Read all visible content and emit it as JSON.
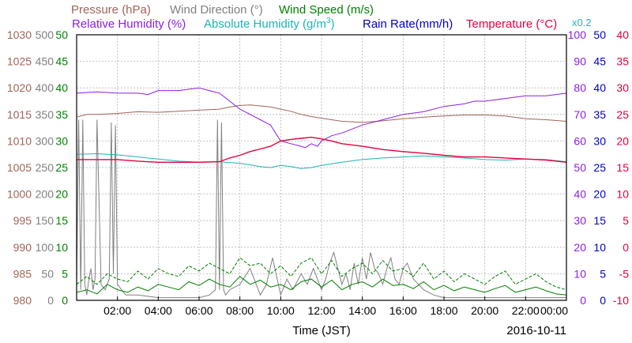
{
  "chart_data": {
    "type": "line",
    "date_label": "2016-10-11",
    "xlabel": "Time (JST)",
    "x_ticks": [
      "02:00",
      "04:00",
      "06:00",
      "08:00",
      "10:00",
      "12:00",
      "14:00",
      "16:00",
      "18:00",
      "20:00",
      "22:00",
      "00:00"
    ],
    "xlim_hours": [
      0,
      24
    ],
    "grid": true,
    "legend": [
      {
        "label": "Pressure (hPa)",
        "color": "#a0645a"
      },
      {
        "label": "Wind Direction (°)",
        "color": "#808080"
      },
      {
        "label": "Wind Speed (m/s)",
        "color": "#008000"
      },
      {
        "label": "Relative Humidity (%)",
        "color": "#8c1ee6"
      },
      {
        "label": "Absolute Humidity (g/m",
        "sup": "3",
        "close": ")",
        "color": "#1eb4b4"
      },
      {
        "label": "Rain Rate(mm/h)",
        "color": "#0000c8"
      },
      {
        "label": "Temperature (°C)",
        "color": "#e6003c"
      },
      {
        "label": "x0.2",
        "color": "#1eb4b4"
      }
    ],
    "axes": {
      "pressure": {
        "color": "#a0645a",
        "ylim": [
          980,
          1030
        ],
        "ticks": [
          "1030",
          "1025",
          "1020",
          "1015",
          "1010",
          "1005",
          "1000",
          "995",
          "990",
          "985",
          "980"
        ]
      },
      "wind_direction": {
        "color": "#808080",
        "ylim": [
          0,
          500
        ],
        "ticks": [
          "500",
          "450",
          "400",
          "350",
          "300",
          "250",
          "200",
          "150",
          "100",
          "50",
          "0"
        ]
      },
      "wind_speed": {
        "color": "#008000",
        "ylim": [
          0,
          50
        ],
        "ticks": [
          "50",
          "45",
          "40",
          "35",
          "30",
          "25",
          "20",
          "15",
          "10",
          "5",
          "0"
        ]
      },
      "relative_humidity": {
        "color": "#8c1ee6",
        "ylim": [
          0,
          100
        ],
        "ticks": [
          "100",
          "90",
          "80",
          "70",
          "60",
          "50",
          "40",
          "30",
          "20",
          "10",
          "0"
        ]
      },
      "rain_rate": {
        "color": "#0000c8",
        "ylim": [
          0,
          50
        ],
        "ticks": [
          "50",
          "45",
          "40",
          "35",
          "30",
          "25",
          "20",
          "15",
          "10",
          "5",
          "0"
        ]
      },
      "temperature": {
        "color": "#e6003c",
        "ylim": [
          -10,
          40
        ],
        "ticks": [
          "40",
          "35",
          "30",
          "25",
          "20",
          "15",
          "10",
          "5",
          "0",
          "-5",
          "-10"
        ]
      }
    },
    "series": [
      {
        "name": "Pressure (hPa)",
        "axis": "pressure",
        "color": "#a0645a",
        "x": [
          0,
          0.5,
          1,
          2,
          3,
          4,
          5,
          6,
          7,
          7.5,
          8,
          8.5,
          9,
          9.5,
          10,
          10.5,
          11,
          11.5,
          12,
          13,
          14,
          15,
          16,
          17,
          18,
          19,
          20,
          21,
          22,
          23,
          24
        ],
        "y": [
          1014.5,
          1015,
          1015,
          1015.2,
          1015.5,
          1015.4,
          1015.6,
          1015.8,
          1016,
          1016.4,
          1016.7,
          1016.8,
          1016.6,
          1016.4,
          1016,
          1015.6,
          1015,
          1014.6,
          1014.3,
          1013.7,
          1013.5,
          1013.8,
          1014.2,
          1014.5,
          1014.7,
          1014.9,
          1014.9,
          1014.7,
          1014.2,
          1014,
          1013.7
        ]
      },
      {
        "name": "Wind Direction (°)",
        "axis": "wind_direction",
        "color": "#808080",
        "x": [
          0,
          0.1,
          0.2,
          0.3,
          0.4,
          0.5,
          0.6,
          0.7,
          0.8,
          0.9,
          1,
          1.2,
          1.4,
          1.6,
          1.7,
          1.8,
          1.9,
          2,
          2.2,
          2.4,
          3,
          4,
          5,
          6,
          6.5,
          6.8,
          6.9,
          7,
          7.1,
          7.2,
          7.3,
          7.5,
          8,
          8.5,
          9,
          9.3,
          9.6,
          10,
          10.3,
          10.6,
          11,
          11.3,
          11.6,
          12,
          12.2,
          12.4,
          12.6,
          12.8,
          13,
          13.2,
          13.4,
          13.6,
          13.8,
          14,
          14.2,
          14.4,
          14.6,
          14.8,
          15,
          15.2,
          15.4,
          15.6,
          15.8,
          16,
          16.2,
          16.5,
          17,
          17.5,
          18,
          18.5,
          19,
          19.5,
          20,
          21,
          22,
          23,
          24
        ],
        "y": [
          30,
          340,
          20,
          340,
          30,
          10,
          40,
          60,
          20,
          40,
          340,
          30,
          20,
          40,
          335,
          50,
          330,
          30,
          20,
          10,
          10,
          5,
          5,
          5,
          10,
          20,
          340,
          20,
          335,
          20,
          10,
          20,
          30,
          60,
          10,
          30,
          80,
          10,
          40,
          20,
          50,
          30,
          60,
          20,
          40,
          70,
          90,
          60,
          30,
          50,
          20,
          70,
          30,
          80,
          40,
          90,
          60,
          50,
          30,
          60,
          80,
          40,
          30,
          60,
          70,
          40,
          20,
          10,
          5,
          5,
          5,
          5,
          5,
          5,
          5,
          5,
          5
        ]
      },
      {
        "name": "Wind Speed (m/s)",
        "axis": "wind_speed",
        "color": "#008000",
        "x": [
          0,
          0.5,
          1,
          1.5,
          2,
          2.5,
          3,
          3.5,
          4,
          4.5,
          5,
          5.5,
          6,
          6.5,
          7,
          7.5,
          8,
          8.5,
          9,
          9.5,
          10,
          10.5,
          11,
          11.5,
          12,
          12.5,
          13,
          13.5,
          14,
          14.5,
          15,
          15.5,
          16,
          16.5,
          17,
          17.5,
          18,
          18.5,
          19,
          19.5,
          20,
          20.5,
          21,
          21.5,
          22,
          22.5,
          23,
          23.5,
          24
        ],
        "y": [
          1.5,
          2,
          1.2,
          3,
          2,
          1.5,
          2.5,
          1.8,
          3,
          2.5,
          2,
          3.5,
          2.8,
          4,
          3,
          2.5,
          4.5,
          3,
          3.8,
          2.5,
          3,
          2,
          3.5,
          4,
          2.5,
          3.8,
          2,
          3,
          3.5,
          2.5,
          4,
          2.8,
          3,
          2.2,
          3.5,
          2,
          2.8,
          1.8,
          2.5,
          2,
          1.5,
          2.2,
          2.8,
          1.5,
          2,
          2.5,
          1.8,
          1.2,
          1
        ]
      },
      {
        "name": "Wind Speed max (m/s)",
        "axis": "wind_speed",
        "color": "#008000",
        "dashed": true,
        "x": [
          0,
          0.5,
          1,
          1.5,
          2,
          2.5,
          3,
          3.5,
          4,
          4.5,
          5,
          5.5,
          6,
          6.5,
          7,
          7.5,
          8,
          8.5,
          9,
          9.5,
          10,
          10.5,
          11,
          11.5,
          12,
          12.5,
          13,
          13.5,
          14,
          14.5,
          15,
          15.5,
          16,
          16.5,
          17,
          17.5,
          18,
          18.5,
          19,
          19.5,
          20,
          20.5,
          21,
          21.5,
          22,
          22.5,
          23,
          23.5,
          24
        ],
        "y": [
          3,
          4.5,
          3,
          5,
          4,
          3.5,
          5.5,
          4,
          6,
          5,
          4.5,
          6.5,
          5.5,
          7,
          6,
          5,
          8,
          6.5,
          7,
          5,
          6.5,
          4.5,
          7,
          8,
          5,
          7.5,
          4.5,
          6,
          7,
          5,
          7.5,
          5.5,
          6,
          4.5,
          7,
          4,
          5.5,
          3.5,
          5,
          4,
          3,
          4.5,
          5.5,
          3,
          4,
          5,
          3.5,
          2.5,
          2
        ]
      },
      {
        "name": "Relative Humidity (%)",
        "axis": "relative_humidity",
        "color": "#8c1ee6",
        "x": [
          0,
          1,
          2,
          3,
          3.5,
          4,
          5,
          6,
          6.5,
          7,
          7.5,
          8,
          8.5,
          9,
          9.5,
          10,
          10.5,
          11,
          11.2,
          11.5,
          11.8,
          12,
          12.5,
          13,
          14,
          15,
          16,
          17,
          18,
          19,
          19.5,
          20,
          21,
          22,
          23,
          24
        ],
        "y": [
          78,
          78.5,
          78,
          78,
          77.5,
          79,
          79,
          80,
          79,
          78,
          75,
          72,
          70,
          68,
          66,
          60,
          59,
          58,
          57.5,
          59,
          58,
          60,
          62,
          63,
          66,
          68,
          70,
          71,
          73,
          74,
          75,
          75,
          76,
          77,
          77,
          78
        ]
      },
      {
        "name": "Absolute Humidity (g/m3) x0.2",
        "axis": "temperature",
        "color": "#1eb4b4",
        "x": [
          0,
          1,
          2,
          3,
          4,
          5,
          6,
          7,
          8,
          8.5,
          9,
          9.5,
          10,
          10.5,
          11,
          11.5,
          12,
          13,
          14,
          15,
          16,
          17,
          18,
          19,
          20,
          21,
          22,
          23,
          24
        ],
        "y": [
          17.5,
          17.6,
          17.4,
          17,
          16.6,
          16.2,
          16,
          16.1,
          15.8,
          15.5,
          15.2,
          15,
          15.4,
          15.2,
          14.8,
          15,
          15.4,
          16,
          16.5,
          16.8,
          17,
          17.2,
          17,
          16.8,
          16.5,
          16.4,
          16.6,
          16.5,
          16.1
        ]
      },
      {
        "name": "Rain Rate(mm/h)",
        "axis": "rain_rate",
        "color": "#0000c8",
        "x": [
          0,
          24
        ],
        "y": [
          0,
          0
        ]
      },
      {
        "name": "Temperature (°C)",
        "axis": "temperature",
        "color": "#e6003c",
        "x": [
          0,
          1,
          2,
          3,
          4,
          5,
          6,
          7,
          7.5,
          8,
          8.5,
          9,
          9.5,
          10,
          10.5,
          11,
          11.5,
          12,
          12.5,
          13,
          14,
          15,
          16,
          17,
          18,
          19,
          20,
          21,
          22,
          23,
          24
        ],
        "y": [
          16.5,
          16.5,
          16.5,
          16.2,
          16,
          16,
          16,
          16.1,
          16.8,
          17.3,
          18,
          18.5,
          19,
          20,
          20.3,
          20.5,
          20.7,
          20.4,
          20,
          19.5,
          19,
          18.4,
          18,
          17.7,
          17.3,
          17,
          17,
          16.8,
          16.6,
          16.4,
          16
        ]
      }
    ]
  }
}
